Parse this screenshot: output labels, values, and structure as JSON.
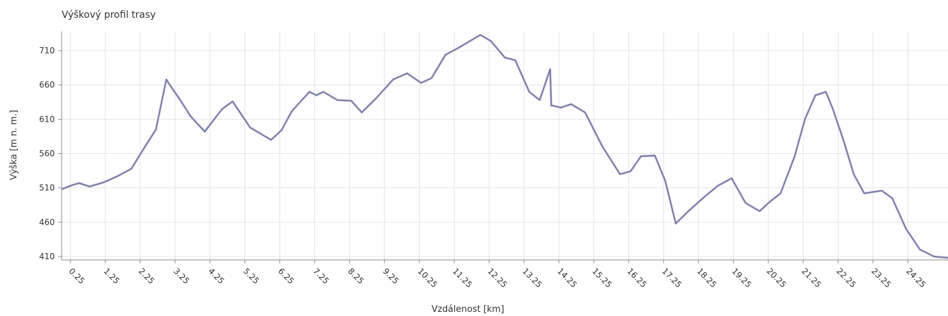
{
  "chart_data": {
    "type": "line",
    "title": "Výškový profil trasy",
    "xlabel": "Vzdálenost [km]",
    "ylabel": "Výška [m n. m.]",
    "xlim": [
      0,
      25.4
    ],
    "ylim": [
      405,
      738
    ],
    "x_ticks": [
      0.25,
      1.25,
      2.25,
      3.25,
      4.25,
      5.25,
      6.25,
      7.25,
      8.25,
      9.25,
      10.25,
      11.25,
      12.25,
      13.25,
      14.25,
      15.25,
      16.25,
      17.25,
      18.25,
      19.25,
      20.25,
      21.25,
      22.25,
      23.25,
      24.25
    ],
    "x_tick_labels": [
      "0.25",
      "1.25",
      "2.25",
      "3.25",
      "4.25",
      "5.25",
      "6.25",
      "7.25",
      "8.25",
      "9.25",
      "10.25",
      "11.25",
      "12.25",
      "13.25",
      "14.25",
      "15.25",
      "16.25",
      "17.25",
      "18.25",
      "19.25",
      "20.25",
      "21.25",
      "22.25",
      "23.25",
      "24.25"
    ],
    "y_ticks": [
      410,
      460,
      510,
      560,
      610,
      660,
      710
    ],
    "y_tick_labels": [
      "410",
      "460",
      "510",
      "560",
      "610",
      "660",
      "710"
    ],
    "grid": true,
    "colors": {
      "line": "#6f6f9e",
      "grid": "#e4e4e4"
    },
    "series": [
      {
        "x": [
          0,
          0.3,
          0.5,
          0.8,
          1.2,
          1.6,
          2.0,
          2.3,
          2.7,
          3.0,
          3.1,
          3.4,
          3.7,
          4.1,
          4.6,
          4.9,
          5.4,
          6.0,
          6.3,
          6.6,
          7.1,
          7.3,
          7.5,
          7.9,
          8.3,
          8.6,
          9.0,
          9.5,
          9.9,
          10.3,
          10.6,
          11.0,
          11.4,
          11.8,
          12.0,
          12.3,
          12.7,
          13.0,
          13.4,
          13.7,
          14.0,
          14.03,
          14.06,
          14.3,
          14.6,
          15.0,
          15.5,
          16.0,
          16.3,
          16.6,
          17.0,
          17.3,
          17.6,
          18.0,
          18.4,
          18.8,
          19.2,
          19.6,
          20.0,
          20.3,
          20.6,
          21.0,
          21.3,
          21.6,
          21.9,
          22.1,
          22.4,
          22.7,
          23.0,
          23.5,
          23.8,
          24.2,
          24.6,
          25.0,
          25.4
        ],
        "y": [
          508,
          514,
          517,
          512,
          518,
          527,
          538,
          563,
          595,
          668,
          660,
          638,
          614,
          592,
          625,
          636,
          598,
          580,
          594,
          622,
          650,
          645,
          650,
          638,
          637,
          620,
          640,
          668,
          677,
          663,
          670,
          704,
          715,
          727,
          733,
          724,
          700,
          696,
          650,
          638,
          683,
          630,
          630,
          627,
          632,
          620,
          570,
          530,
          534,
          556,
          557,
          520,
          458,
          478,
          496,
          513,
          524,
          488,
          476,
          490,
          502,
          555,
          610,
          645,
          650,
          625,
          580,
          530,
          502,
          506,
          495,
          450,
          420,
          410,
          408
        ]
      }
    ]
  }
}
